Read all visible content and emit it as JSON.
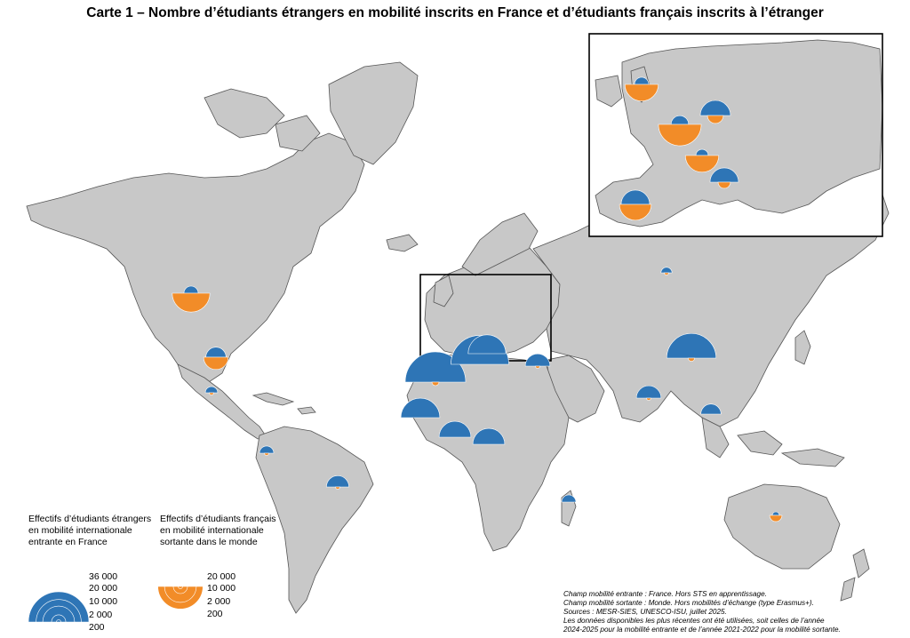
{
  "title": "Carte 1 – Nombre d’étudiants étrangers en mobilité inscrits en France et d’étudiants français inscrits à l’étranger",
  "colors": {
    "incoming": "#2e75b6",
    "outgoing": "#f28c28",
    "land": "#c8c8c8",
    "border": "#555555",
    "ocean": "#ffffff"
  },
  "legend": {
    "incoming": {
      "label_lines": [
        "Effectifs d’étudiants étrangers",
        "en mobilité internationale",
        "entrante en France"
      ],
      "values": [
        "36 000",
        "20 000",
        "10 000",
        "2 000",
        "200"
      ]
    },
    "outgoing": {
      "label_lines": [
        "Effectifs d’étudiants français",
        "en mobilité internationale",
        "sortante dans le monde"
      ],
      "values": [
        "20 000",
        "10 000",
        "2 000",
        "200"
      ]
    }
  },
  "notes": [
    "Champ mobilité entrante : France. Hors STS en apprentissage.",
    "Champ mobilité sortante : Monde. Hors mobilités d’échange (type Erasmus+).",
    "Sources : MESR-SIES, UNESCO-ISU, juillet 2025.",
    "Les données disponibles les plus récentes ont été utilisées, soit celles de l’année",
    "2024-2025 pour la mobilité entrante et de l’année 2021-2022 pour la mobilité sortante."
  ],
  "symbols": [
    {
      "region": "Canada",
      "in": 2000,
      "out": 14000
    },
    {
      "region": "United States",
      "in": 4000,
      "out": 6000
    },
    {
      "region": "Mexico",
      "in": 1500,
      "out": 200
    },
    {
      "region": "Morocco",
      "in": 36000,
      "out": 500
    },
    {
      "region": "Algeria",
      "in": 33000,
      "out": 0
    },
    {
      "region": "Tunisia",
      "in": 14000,
      "out": 0
    },
    {
      "region": "Senegal",
      "in": 15000,
      "out": 0
    },
    {
      "region": "Ivory Coast",
      "in": 10000,
      "out": 0
    },
    {
      "region": "Cameroon",
      "in": 10000,
      "out": 0
    },
    {
      "region": "Lebanon",
      "in": 6000,
      "out": 200
    },
    {
      "region": "China",
      "in": 24000,
      "out": 400
    },
    {
      "region": "India",
      "in": 6000,
      "out": 200
    },
    {
      "region": "Vietnam",
      "in": 4000,
      "out": 0
    },
    {
      "region": "Brazil",
      "in": 5000,
      "out": 200
    },
    {
      "region": "Colombia",
      "in": 2000,
      "out": 200
    },
    {
      "region": "Madagascar",
      "in": 2000,
      "out": 0
    },
    {
      "region": "Australia",
      "in": 500,
      "out": 1500
    },
    {
      "region": "Russia",
      "in": 1200,
      "out": 200
    },
    {
      "region": "Spain",
      "in": 8000,
      "out": 10000
    },
    {
      "region": "United Kingdom",
      "in": 2000,
      "out": 11000
    },
    {
      "region": "Belgium",
      "in": 3000,
      "out": 18000
    },
    {
      "region": "Switzerland",
      "in": 1500,
      "out": 11000
    },
    {
      "region": "Germany",
      "in": 9000,
      "out": 2500
    },
    {
      "region": "Italy",
      "in": 8000,
      "out": 1500
    }
  ]
}
